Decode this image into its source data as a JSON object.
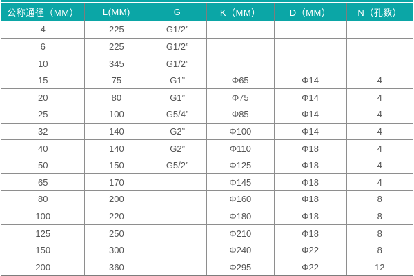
{
  "colors": {
    "header_bg": "#0ba6a6",
    "header_text": "#ffffff",
    "cell_text": "#555555",
    "border": "#8e8e8e",
    "accent_bar": "#0ba6a6"
  },
  "table": {
    "column_widths_pct": [
      20.3,
      15.4,
      14.2,
      16.4,
      17.6,
      16.1
    ],
    "headers": [
      "公称通径（MM）",
      "L(MM)",
      "G",
      "K（MM）",
      "D（MM）",
      "N（孔数）"
    ],
    "rows": [
      [
        "4",
        "225",
        "G1/2”",
        "",
        "",
        ""
      ],
      [
        "6",
        "225",
        "G1/2”",
        "",
        "",
        ""
      ],
      [
        "10",
        "345",
        "G1/2”",
        "",
        "",
        ""
      ],
      [
        "15",
        "75",
        "G1”",
        "Φ65",
        "Φ14",
        "4"
      ],
      [
        "20",
        "80",
        "G1”",
        "Φ75",
        "Φ14",
        "4"
      ],
      [
        "25",
        "100",
        "G5/4”",
        "Φ85",
        "Φ14",
        "4"
      ],
      [
        "32",
        "140",
        "G2”",
        "Φ100",
        "Φ14",
        "4"
      ],
      [
        "40",
        "140",
        "G2”",
        "Φ110",
        "Φ18",
        "4"
      ],
      [
        "50",
        "150",
        "G5/2”",
        "Φ125",
        "Φ18",
        "4"
      ],
      [
        "65",
        "170",
        "",
        "Φ145",
        "Φ18",
        "4"
      ],
      [
        "80",
        "200",
        "",
        "Φ160",
        "Φ18",
        "8"
      ],
      [
        "100",
        "220",
        "",
        "Φ180",
        "Φ18",
        "8"
      ],
      [
        "125",
        "250",
        "",
        "Φ210",
        "Φ18",
        "8"
      ],
      [
        "150",
        "300",
        "",
        "Φ240",
        "Φ22",
        "8"
      ],
      [
        "200",
        "360",
        "",
        "Φ295",
        "Φ22",
        "12"
      ]
    ]
  }
}
